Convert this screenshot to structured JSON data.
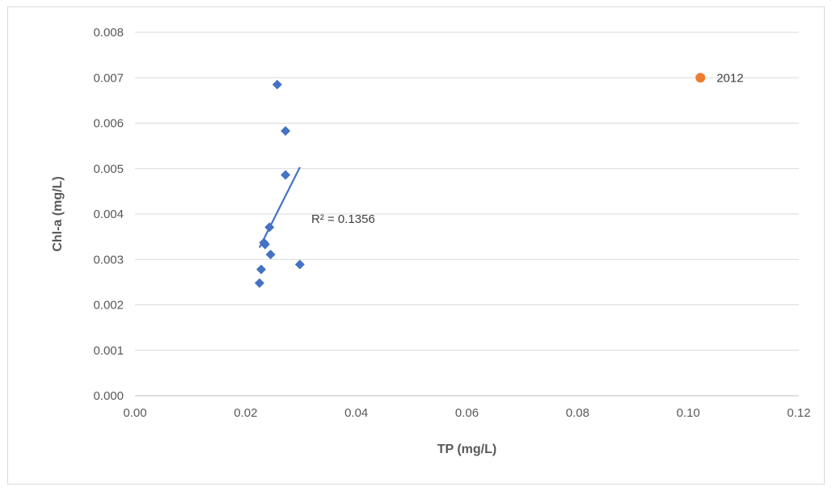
{
  "chart_data": {
    "type": "scatter",
    "title": "",
    "xlabel": "TP (mg/L)",
    "ylabel": "Chl-a (mg/L)",
    "xlim": [
      0,
      0.12
    ],
    "ylim": [
      0,
      0.008
    ],
    "x_ticks": [
      "0.00",
      "0.02",
      "0.04",
      "0.06",
      "0.08",
      "0.10",
      "0.12"
    ],
    "y_ticks": [
      "0.000",
      "0.001",
      "0.002",
      "0.003",
      "0.004",
      "0.005",
      "0.006",
      "0.007",
      "0.008"
    ],
    "grid": "horizontal",
    "series": [
      {
        "marker": "diamond",
        "color": "#4472c4",
        "points": [
          {
            "x": 0.0257,
            "y": 0.00685
          },
          {
            "x": 0.0272,
            "y": 0.00583
          },
          {
            "x": 0.0272,
            "y": 0.00486
          },
          {
            "x": 0.0243,
            "y": 0.00371
          },
          {
            "x": 0.0233,
            "y": 0.00337
          },
          {
            "x": 0.0235,
            "y": 0.00333
          },
          {
            "x": 0.0245,
            "y": 0.00311
          },
          {
            "x": 0.0298,
            "y": 0.00289
          },
          {
            "x": 0.0228,
            "y": 0.00278
          },
          {
            "x": 0.0225,
            "y": 0.00248
          }
        ],
        "trendline": {
          "type": "linear",
          "color": "#4472c4",
          "x_range": [
            0.0225,
            0.0298
          ],
          "y_range": [
            0.00326,
            0.00503
          ],
          "label": "R² = 0.1356"
        }
      },
      {
        "name": "2012",
        "marker": "circle",
        "color": "#ed7d31",
        "points": [
          {
            "x": 0.1022,
            "y": 0.007
          }
        ]
      }
    ]
  }
}
